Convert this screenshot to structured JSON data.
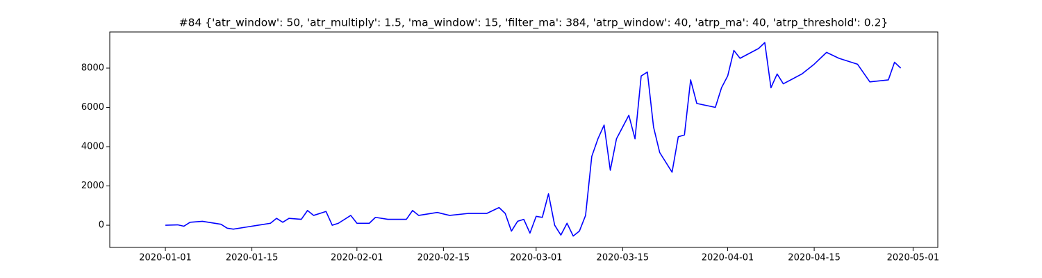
{
  "chart_data": {
    "type": "line",
    "title": "#84 {'atr_window': 50, 'atr_multiply': 1.5, 'ma_window': 15, 'filter_ma': 384, 'atrp_window': 40, 'atrp_ma': 40, 'atrp_threshold': 0.2}",
    "x": [
      "2020-01-01",
      "2020-01-03",
      "2020-01-04",
      "2020-01-05",
      "2020-01-07",
      "2020-01-10",
      "2020-01-11",
      "2020-01-12",
      "2020-01-14",
      "2020-01-16",
      "2020-01-18",
      "2020-01-19",
      "2020-01-20",
      "2020-01-21",
      "2020-01-23",
      "2020-01-24",
      "2020-01-25",
      "2020-01-27",
      "2020-01-28",
      "2020-01-29",
      "2020-01-31",
      "2020-02-01",
      "2020-02-03",
      "2020-02-04",
      "2020-02-06",
      "2020-02-09",
      "2020-02-10",
      "2020-02-11",
      "2020-02-14",
      "2020-02-16",
      "2020-02-19",
      "2020-02-22",
      "2020-02-24",
      "2020-02-25",
      "2020-02-26",
      "2020-02-27",
      "2020-02-28",
      "2020-02-29",
      "2020-03-01",
      "2020-03-02",
      "2020-03-03",
      "2020-03-04",
      "2020-03-05",
      "2020-03-06",
      "2020-03-07",
      "2020-03-08",
      "2020-03-09",
      "2020-03-10",
      "2020-03-11",
      "2020-03-12",
      "2020-03-13",
      "2020-03-14",
      "2020-03-16",
      "2020-03-17",
      "2020-03-18",
      "2020-03-19",
      "2020-03-20",
      "2020-03-21",
      "2020-03-23",
      "2020-03-24",
      "2020-03-25",
      "2020-03-26",
      "2020-03-27",
      "2020-03-30",
      "2020-03-31",
      "2020-04-01",
      "2020-04-02",
      "2020-04-03",
      "2020-04-06",
      "2020-04-07",
      "2020-04-08",
      "2020-04-09",
      "2020-04-10",
      "2020-04-13",
      "2020-04-15",
      "2020-04-17",
      "2020-04-19",
      "2020-04-22",
      "2020-04-24",
      "2020-04-27",
      "2020-04-28",
      "2020-04-29"
    ],
    "series": [
      {
        "color": "#0000ff",
        "values": [
          0,
          20,
          -50,
          150,
          200,
          50,
          -150,
          -200,
          -100,
          0,
          100,
          350,
          150,
          350,
          300,
          750,
          500,
          700,
          0,
          100,
          500,
          100,
          100,
          400,
          300,
          300,
          750,
          500,
          650,
          500,
          600,
          600,
          900,
          600,
          -300,
          200,
          300,
          -400,
          450,
          400,
          1600,
          0,
          -500,
          100,
          -550,
          -300,
          500,
          3500,
          4400,
          5100,
          2800,
          4400,
          5600,
          4400,
          7600,
          7800,
          5000,
          3700,
          2700,
          4500,
          4600,
          7400,
          6200,
          6000,
          7000,
          7600,
          8900,
          8500,
          9000,
          9300,
          7000,
          7700,
          7200,
          7700,
          8200,
          8800,
          8500,
          8200,
          7300,
          7400,
          8300,
          8000
        ]
      }
    ],
    "xlim": [
      "2019-12-23",
      "2020-05-05"
    ],
    "xticks": [
      "2020-01-01",
      "2020-01-15",
      "2020-02-01",
      "2020-02-15",
      "2020-03-01",
      "2020-03-15",
      "2020-04-01",
      "2020-04-15",
      "2020-05-01"
    ],
    "ylim": [
      -1130,
      9840
    ],
    "yticks": [
      0,
      2000,
      4000,
      6000,
      8000
    ]
  }
}
